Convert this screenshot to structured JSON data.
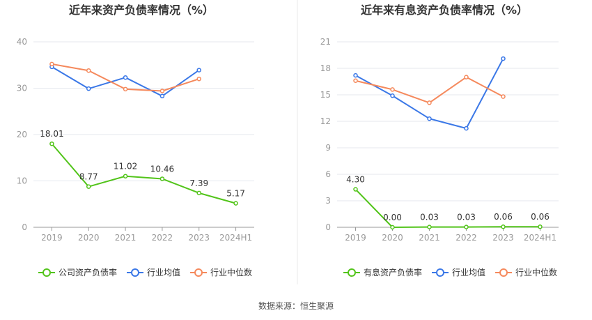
{
  "chart_data": [
    {
      "type": "line",
      "title": "近年来资产负债率情况（%）",
      "categories": [
        "2019",
        "2020",
        "2021",
        "2022",
        "2023",
        "2024H1"
      ],
      "ylim": [
        0,
        40
      ],
      "yticks": [
        "0",
        "10",
        "20",
        "30",
        "40"
      ],
      "series": [
        {
          "name": "公司资产负债率",
          "color": "#52c41a",
          "values": [
            18.01,
            8.77,
            11.02,
            10.46,
            7.39,
            5.17
          ],
          "labels": [
            "18.01",
            "8.77",
            "11.02",
            "10.46",
            "7.39",
            "5.17"
          ]
        },
        {
          "name": "行业均值",
          "color": "#3b78e7",
          "values": [
            34.6,
            29.9,
            32.3,
            28.3,
            33.9,
            null
          ]
        },
        {
          "name": "行业中位数",
          "color": "#f5895c",
          "values": [
            35.2,
            33.8,
            29.8,
            29.4,
            32.0,
            null
          ]
        }
      ],
      "grid": true,
      "legend_position": "bottom"
    },
    {
      "type": "line",
      "title": "近年来有息资产负债率情况（%）",
      "categories": [
        "2019",
        "2020",
        "2021",
        "2022",
        "2023",
        "2024H1"
      ],
      "ylim": [
        0,
        21
      ],
      "yticks": [
        "0",
        "3",
        "6",
        "9",
        "12",
        "15",
        "18",
        "21"
      ],
      "series": [
        {
          "name": "有息资产负债率",
          "color": "#52c41a",
          "values": [
            4.3,
            0.0,
            0.03,
            0.03,
            0.06,
            0.06
          ],
          "labels": [
            "4.30",
            "0.00",
            "0.03",
            "0.03",
            "0.06",
            "0.06"
          ]
        },
        {
          "name": "行业均值",
          "color": "#3b78e7",
          "values": [
            17.2,
            14.9,
            12.3,
            11.2,
            19.1,
            null
          ]
        },
        {
          "name": "行业中位数",
          "color": "#f5895c",
          "values": [
            16.6,
            15.6,
            14.1,
            17.0,
            14.8,
            null
          ]
        }
      ],
      "grid": true,
      "legend_position": "bottom"
    }
  ],
  "footer": {
    "source": "数据来源：恒生聚源"
  },
  "colors": {
    "grid": "#e4e7ee",
    "axis": "#999999",
    "tick_text": "#999999",
    "title": "#333333",
    "divider": "#e8e8e8"
  }
}
